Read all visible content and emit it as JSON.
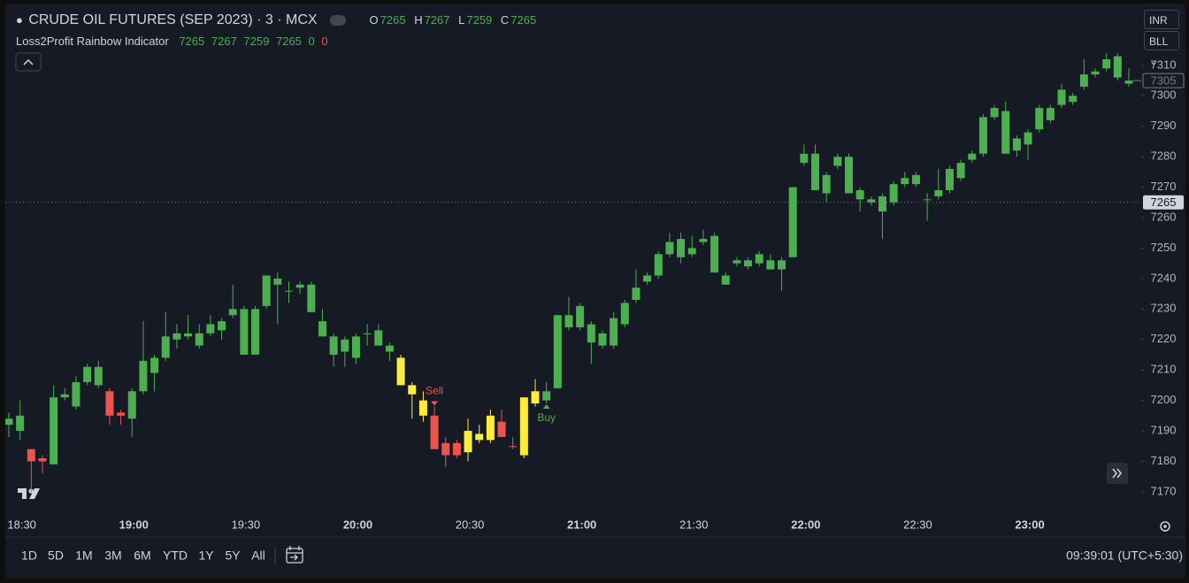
{
  "header": {
    "symbol": "CRUDE OIL FUTURES (SEP 2023) · 3 · MCX",
    "ohlc": [
      {
        "label": "O",
        "value": 7265
      },
      {
        "label": "H",
        "value": 7267
      },
      {
        "label": "L",
        "value": 7259
      },
      {
        "label": "C",
        "value": 7265
      }
    ]
  },
  "indicator": {
    "name": "Loss2Profit Rainbow Indicator",
    "values": [
      7265,
      7267,
      7259,
      7265,
      0,
      0
    ]
  },
  "currency": "INR",
  "unit": "BLL",
  "chart_data": {
    "type": "candlestick",
    "categories": [
      null,
      "18:30",
      null,
      null,
      null,
      null,
      null,
      null,
      null,
      null,
      null,
      "19:00",
      null,
      null,
      null,
      null,
      null,
      null,
      null,
      null,
      null,
      "19:30",
      null,
      null,
      null,
      null,
      null,
      null,
      null,
      null,
      null,
      "20:00",
      null,
      null,
      null,
      null,
      null,
      null,
      null,
      null,
      null,
      "20:30",
      null,
      null,
      null,
      null,
      null,
      null,
      null,
      null,
      null,
      "21:00",
      null,
      null,
      null,
      null,
      null,
      null,
      null,
      null,
      null,
      "21:30",
      null,
      null,
      null,
      null,
      null,
      null,
      null,
      null,
      null,
      "22:00",
      null,
      null,
      null,
      null,
      null,
      null,
      null,
      null,
      null,
      "22:30",
      null,
      null,
      null,
      null,
      null,
      null,
      null,
      null,
      null,
      "23:00",
      null,
      null,
      null,
      null,
      null,
      null,
      null,
      null,
      null
    ],
    "open": [
      7192,
      7190,
      7184,
      7181,
      7179,
      7201,
      7198,
      7206,
      7205,
      7203,
      7196,
      7194,
      7203,
      7209,
      7214,
      7220,
      7221,
      7218,
      7222,
      7223,
      7228,
      7230,
      7230,
      7231,
      7238,
      7236,
      7237,
      7238,
      7226,
      7221,
      7216,
      7214,
      7222,
      7223,
      7218,
      7214,
      7205,
      7200,
      7195,
      7186,
      7186,
      7183,
      7187,
      7187,
      7193,
      7185,
      7182,
      7199,
      7200,
      7204,
      7224,
      7224,
      7219,
      7218,
      7218,
      7225,
      7233,
      7239,
      7241,
      7248,
      7247,
      7248,
      7252,
      7254,
      7241,
      7245,
      7244,
      7245,
      7246,
      7243,
      7247,
      7278,
      7281,
      7268,
      7277,
      7280,
      7266,
      7265,
      7267,
      7265,
      7271,
      7271,
      7266,
      7267,
      7269,
      7273,
      7279,
      7281,
      7293,
      7295,
      7282,
      7284,
      7289,
      7292,
      7297,
      7298,
      7303,
      7307,
      7309,
      7313,
      7304
    ],
    "high": [
      7196,
      7200,
      7184,
      7182,
      7205,
      7204,
      7208,
      7212,
      7213,
      7204,
      7197,
      7204,
      7226,
      7215,
      7229,
      7225,
      7228,
      7225,
      7228,
      7227,
      7238,
      7231,
      7231,
      7241,
      7242,
      7239,
      7239,
      7239,
      7230,
      7222,
      7221,
      7222,
      7225,
      7225,
      7219,
      7215,
      7206,
      7203,
      7198,
      7188,
      7187,
      7194,
      7192,
      7197,
      7197,
      7188,
      7201,
      7207,
      7206,
      7228,
      7234,
      7232,
      7226,
      7223,
      7229,
      7233,
      7243,
      7242,
      7249,
      7255,
      7255,
      7254,
      7256,
      7255,
      7242,
      7247,
      7247,
      7249,
      7248,
      7247,
      7270,
      7284,
      7284,
      7275,
      7281,
      7281,
      7270,
      7267,
      7268,
      7272,
      7275,
      7275,
      7268,
      7276,
      7277,
      7279,
      7282,
      7294,
      7297,
      7298,
      7287,
      7289,
      7297,
      7297,
      7304,
      7301,
      7312,
      7309,
      7314,
      7314,
      7309
    ],
    "low": [
      7188,
      7187,
      7170,
      7176,
      7179,
      7200,
      7197,
      7205,
      7204,
      7192,
      7192,
      7188,
      7202,
      7203,
      7213,
      7217,
      7220,
      7217,
      7221,
      7220,
      7227,
      7215,
      7215,
      7230,
      7225,
      7232,
      7235,
      7229,
      7221,
      7211,
      7211,
      7212,
      7218,
      7218,
      7213,
      7205,
      7194,
      7193,
      7184,
      7178,
      7181,
      7180,
      7186,
      7186,
      7188,
      7184,
      7181,
      7198,
      7199,
      7204,
      7223,
      7223,
      7212,
      7217,
      7217,
      7224,
      7232,
      7238,
      7240,
      7247,
      7245,
      7247,
      7251,
      7242,
      7238,
      7244,
      7243,
      7244,
      7243,
      7236,
      7247,
      7277,
      7269,
      7265,
      7276,
      7268,
      7262,
      7264,
      7253,
      7264,
      7270,
      7270,
      7259,
      7266,
      7268,
      7272,
      7278,
      7280,
      7292,
      7281,
      7280,
      7279,
      7288,
      7291,
      7296,
      7297,
      7302,
      7306,
      7308,
      7305,
      7303
    ],
    "close": [
      7194,
      7195,
      7180,
      7180,
      7201,
      7202,
      7206,
      7211,
      7211,
      7195,
      7195,
      7203,
      7213,
      7214,
      7221,
      7222,
      7222,
      7222,
      7225,
      7226,
      7230,
      7215,
      7215,
      7241,
      7240,
      7236,
      7238,
      7229,
      7221,
      7215,
      7220,
      7221,
      7222,
      7218,
      7216,
      7205,
      7202,
      7195,
      7184,
      7182,
      7182,
      7190,
      7189,
      7195,
      7188,
      7185,
      7201,
      7203,
      7203,
      7228,
      7228,
      7231,
      7225,
      7222,
      7227,
      7232,
      7237,
      7241,
      7248,
      7252,
      7253,
      7250,
      7253,
      7242,
      7238,
      7246,
      7246,
      7248,
      7243,
      7246,
      7270,
      7281,
      7269,
      7274,
      7280,
      7268,
      7269,
      7266,
      7262,
      7271,
      7273,
      7274,
      7266,
      7269,
      7276,
      7278,
      7281,
      7293,
      7296,
      7281,
      7286,
      7288,
      7296,
      7296,
      7302,
      7300,
      7307,
      7308,
      7312,
      7306,
      7305
    ],
    "colors": [
      "#4caf50",
      "#4caf50",
      "#ef5350",
      "#ef5350",
      "#4caf50",
      "#4caf50",
      "#4caf50",
      "#4caf50",
      "#4caf50",
      "#ef5350",
      "#ef5350",
      "#4caf50",
      "#4caf50",
      "#4caf50",
      "#4caf50",
      "#4caf50",
      "#4caf50",
      "#4caf50",
      "#4caf50",
      "#4caf50",
      "#4caf50",
      "#4caf50",
      "#4caf50",
      "#4caf50",
      "#4caf50",
      "#4caf50",
      "#4caf50",
      "#4caf50",
      "#4caf50",
      "#4caf50",
      "#4caf50",
      "#4caf50",
      "#4caf50",
      "#4caf50",
      "#4caf50",
      "#ffeb3b",
      "#ffeb3b",
      "#ffeb3b",
      "#ef5350",
      "#ef5350",
      "#ef5350",
      "#ffeb3b",
      "#ffeb3b",
      "#ffeb3b",
      "#ef5350",
      "#ef5350",
      "#ffeb3b",
      "#ffeb3b",
      "#4caf50",
      "#4caf50",
      "#4caf50",
      "#4caf50",
      "#4caf50",
      "#4caf50",
      "#4caf50",
      "#4caf50",
      "#4caf50",
      "#4caf50",
      "#4caf50",
      "#4caf50",
      "#4caf50",
      "#4caf50",
      "#4caf50",
      "#4caf50",
      "#4caf50",
      "#4caf50",
      "#4caf50",
      "#4caf50",
      "#4caf50",
      "#4caf50",
      "#4caf50",
      "#4caf50",
      "#4caf50",
      "#4caf50",
      "#4caf50",
      "#4caf50",
      "#4caf50",
      "#4caf50",
      "#4caf50",
      "#4caf50",
      "#4caf50",
      "#4caf50",
      "#4caf50",
      "#4caf50",
      "#4caf50",
      "#4caf50",
      "#4caf50",
      "#4caf50",
      "#4caf50",
      "#4caf50",
      "#4caf50",
      "#4caf50",
      "#4caf50",
      "#4caf50",
      "#4caf50",
      "#4caf50",
      "#4caf50",
      "#4caf50",
      "#4caf50",
      "#4caf50",
      "#4caf50"
    ],
    "ylim": [
      7163,
      7330
    ],
    "yticks": [
      7170,
      7180,
      7190,
      7200,
      7210,
      7220,
      7230,
      7240,
      7250,
      7260,
      7270,
      7280,
      7290,
      7300,
      7310
    ],
    "price_lines": [
      {
        "value": 7265,
        "style": "filled"
      },
      {
        "value": 7305,
        "style": "outlined"
      }
    ],
    "annotations": [
      {
        "text": "Sell",
        "index": 38,
        "side": "above",
        "color": "#ef5350"
      },
      {
        "text": "Buy",
        "index": 48,
        "side": "below",
        "color": "#4caf50"
      }
    ]
  },
  "toolbar": {
    "ranges": [
      "1D",
      "5D",
      "1M",
      "3M",
      "6M",
      "YTD",
      "1Y",
      "5Y",
      "All"
    ],
    "clock": "09:39:01 (UTC+5:30)"
  }
}
